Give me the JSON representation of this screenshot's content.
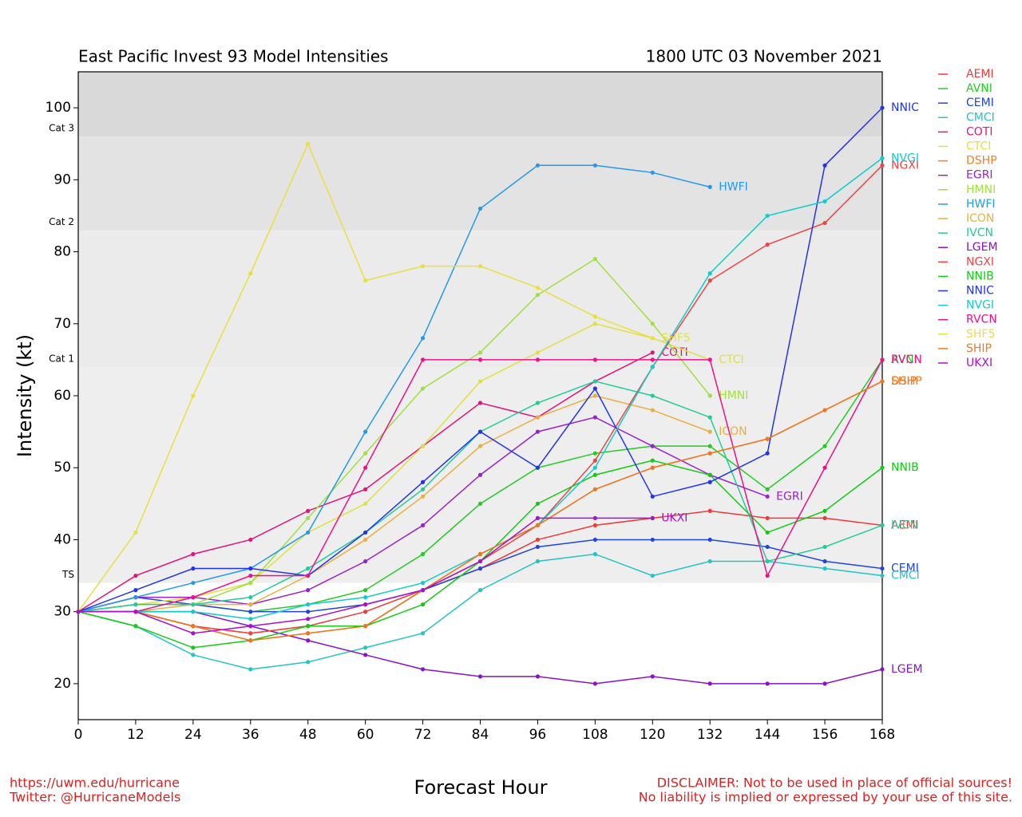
{
  "chart_data": {
    "type": "line",
    "title": "East Pacific Invest 93 Model Intensities",
    "subtitle": "1800 UTC 03 November 2021",
    "x_label": "Forecast Hour",
    "y_label": "Intensity (kt)",
    "footer_left": [
      "https://uwm.edu/hurricane",
      "Twitter: @HurricaneModels"
    ],
    "footer_right": [
      "DISCLAIMER: Not to be used in place of official sources!",
      "No liability is implied or expressed by your use of this site."
    ],
    "bands": [
      {
        "label": "TS",
        "value": 34,
        "color": "#eeeeee"
      },
      {
        "label": "Cat 1",
        "value": 64,
        "color": "#ebebeb"
      },
      {
        "label": "Cat 2",
        "value": 83,
        "color": "#e3e3e3"
      },
      {
        "label": "Cat 3",
        "value": 96,
        "color": "#d9d9d9"
      }
    ],
    "x": [
      0,
      12,
      24,
      36,
      48,
      60,
      72,
      84,
      96,
      108,
      120,
      132,
      144,
      156,
      168
    ],
    "xlim": [
      0,
      168
    ],
    "xticks": [
      0,
      12,
      24,
      36,
      48,
      60,
      72,
      84,
      96,
      108,
      120,
      132,
      144,
      156,
      168
    ],
    "ylim": [
      15,
      105
    ],
    "yticks": [
      20,
      30,
      40,
      50,
      60,
      70,
      80,
      90,
      100
    ],
    "series": [
      {
        "name": "AEMI",
        "color": "#ee3a3a",
        "values": [
          30,
          30,
          28,
          27,
          28,
          30,
          33,
          36,
          40,
          42,
          43,
          44,
          43,
          43,
          42
        ]
      },
      {
        "name": "AVNI",
        "color": "#22cc22",
        "values": [
          30,
          31,
          31,
          30,
          31,
          33,
          38,
          45,
          50,
          52,
          53,
          53,
          47,
          53,
          65
        ]
      },
      {
        "name": "CEMI",
        "color": "#2244dd",
        "values": [
          30,
          32,
          31,
          30,
          30,
          31,
          33,
          36,
          39,
          40,
          40,
          40,
          39,
          37,
          36
        ]
      },
      {
        "name": "CMCI",
        "color": "#22c4c4",
        "values": [
          30,
          28,
          24,
          22,
          23,
          25,
          27,
          33,
          37,
          38,
          35,
          37,
          37,
          36,
          35
        ]
      },
      {
        "name": "COTI",
        "color": "#e0157a",
        "values": [
          30,
          35,
          38,
          40,
          44,
          47,
          53,
          59,
          57,
          62,
          66,
          null,
          null,
          null,
          null
        ]
      },
      {
        "name": "CTCI",
        "color": "#e0e040",
        "values": [
          30,
          31,
          32,
          34,
          41,
          45,
          53,
          62,
          66,
          70,
          68,
          65,
          null,
          null,
          null
        ]
      },
      {
        "name": "DSHP",
        "color": "#f08030",
        "values": [
          30,
          30,
          28,
          26,
          27,
          28,
          33,
          38,
          42,
          47,
          50,
          52,
          54,
          58,
          62
        ]
      },
      {
        "name": "EGRI",
        "color": "#9922cc",
        "values": [
          30,
          32,
          32,
          31,
          33,
          37,
          42,
          49,
          55,
          57,
          53,
          49,
          46,
          null,
          null
        ]
      },
      {
        "name": "HMNI",
        "color": "#a0e040",
        "values": [
          30,
          31,
          31,
          34,
          43,
          52,
          61,
          66,
          74,
          79,
          70,
          60,
          null,
          null,
          null
        ]
      },
      {
        "name": "HWFI",
        "color": "#2299ee",
        "values": [
          30,
          32,
          34,
          36,
          41,
          55,
          68,
          86,
          92,
          92,
          91,
          89,
          null,
          null,
          null
        ]
      },
      {
        "name": "ICON",
        "color": "#e8b040",
        "values": [
          30,
          30,
          31,
          31,
          35,
          40,
          46,
          53,
          57,
          60,
          58,
          55,
          null,
          null,
          null
        ]
      },
      {
        "name": "IVCN",
        "color": "#22cc99",
        "values": [
          30,
          31,
          31,
          32,
          36,
          41,
          47,
          55,
          59,
          62,
          60,
          57,
          37,
          39,
          42
        ]
      },
      {
        "name": "LGEM",
        "color": "#8811cc",
        "values": [
          30,
          30,
          30,
          28,
          26,
          24,
          22,
          21,
          21,
          20,
          21,
          20,
          20,
          20,
          22
        ]
      },
      {
        "name": "NGXI",
        "color": "#ee4444",
        "values": [
          30,
          30,
          28,
          27,
          28,
          28,
          33,
          37,
          42,
          51,
          64,
          76,
          81,
          84,
          92
        ]
      },
      {
        "name": "NNIB",
        "color": "#11cc11",
        "values": [
          30,
          28,
          25,
          26,
          28,
          28,
          31,
          37,
          45,
          49,
          51,
          49,
          41,
          44,
          50
        ]
      },
      {
        "name": "NNIC",
        "color": "#2233ee",
        "values": [
          30,
          33,
          36,
          36,
          35,
          41,
          48,
          55,
          50,
          61,
          46,
          48,
          52,
          92,
          100
        ]
      },
      {
        "name": "NVGI",
        "color": "#11cccc",
        "values": [
          30,
          30,
          30,
          29,
          31,
          32,
          34,
          38,
          42,
          50,
          64,
          77,
          85,
          87,
          93
        ]
      },
      {
        "name": "RVCN",
        "color": "#ee1188",
        "values": [
          30,
          30,
          32,
          35,
          35,
          50,
          65,
          65,
          65,
          65,
          65,
          65,
          35,
          50,
          65
        ]
      },
      {
        "name": "SHF5",
        "color": "#e8e040",
        "values": [
          30,
          41,
          60,
          77,
          95,
          76,
          78,
          78,
          75,
          71,
          68,
          null,
          null,
          null,
          null
        ]
      },
      {
        "name": "SHIP",
        "color": "#ee7722",
        "values": [
          30,
          30,
          28,
          26,
          27,
          28,
          33,
          38,
          42,
          47,
          50,
          52,
          54,
          58,
          62
        ]
      },
      {
        "name": "UKXI",
        "color": "#aa11cc",
        "values": [
          30,
          30,
          27,
          28,
          29,
          31,
          33,
          37,
          43,
          43,
          43,
          null,
          null,
          null,
          null
        ]
      }
    ]
  }
}
